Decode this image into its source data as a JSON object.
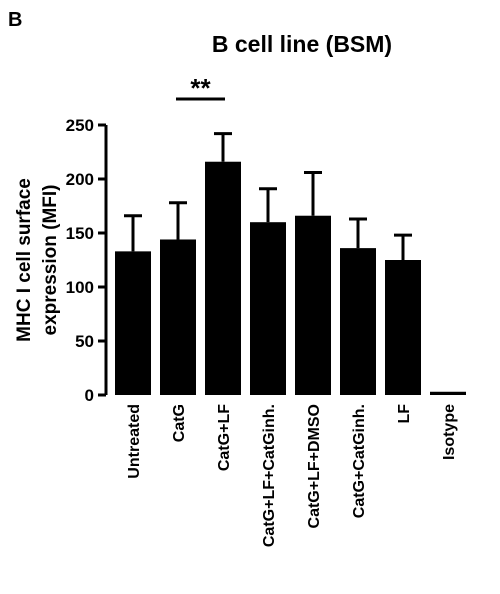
{
  "panel_label": "B",
  "chart_data": {
    "type": "bar",
    "title": "B cell line (BSM)",
    "ylabel_lines": [
      "MHC I cell surface",
      "expression (MFI)"
    ],
    "xlabel": "",
    "ylim": [
      0,
      250
    ],
    "yticks": [
      0,
      50,
      100,
      150,
      200,
      250
    ],
    "ytick_labels": [
      "0",
      "50",
      "100",
      "150",
      "200",
      "250"
    ],
    "categories": [
      "Untreated",
      "CatG",
      "CatG+LF",
      "CatG+LF+CatGinh.",
      "CatG+LF+DMSO",
      "CatG+CatGinh.",
      "LF",
      "Isotype"
    ],
    "values": [
      133,
      144,
      216,
      160,
      166,
      136,
      125,
      3
    ],
    "errors": [
      33,
      34,
      26,
      31,
      40,
      27,
      23,
      0
    ],
    "bar_color": "#000000",
    "grid": false,
    "annotations": [
      {
        "text": "**",
        "from_category": "CatG",
        "to_category": "CatG+LF"
      }
    ]
  }
}
